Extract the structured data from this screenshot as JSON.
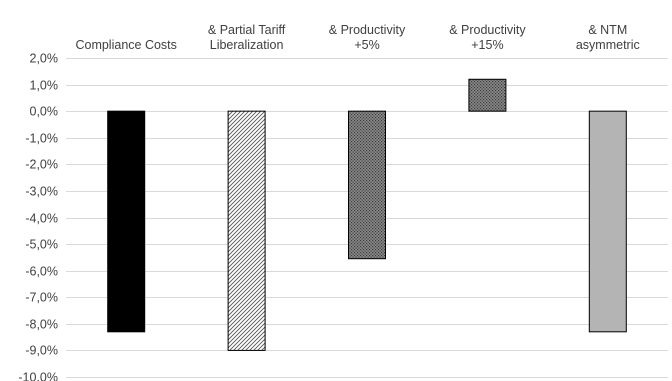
{
  "chart_data": {
    "type": "bar",
    "categories": [
      [
        "Compliance Costs"
      ],
      [
        "& Partial Tariff",
        "Liberalization"
      ],
      [
        "& Productivity",
        "+5%"
      ],
      [
        "& Productivity",
        "+15%"
      ],
      [
        "& NTM",
        "asymmetric"
      ]
    ],
    "values": [
      -8.3,
      -9.0,
      -5.55,
      1.2,
      -8.3
    ],
    "value_unit": "%",
    "ylim": [
      -10.0,
      2.0
    ],
    "y_ticks": [
      2.0,
      1.0,
      0.0,
      -1.0,
      -2.0,
      -3.0,
      -4.0,
      -5.0,
      -6.0,
      -7.0,
      -8.0,
      -9.0,
      -10.0
    ],
    "y_tick_labels": [
      "2,0%",
      "1,0%",
      "0,0%",
      "-1,0%",
      "-2,0%",
      "-3,0%",
      "-4,0%",
      "-5,0%",
      "-6,0%",
      "-7,0%",
      "-8,0%",
      "-9,0%",
      "-10,0%"
    ],
    "category_labels_position": "top",
    "grid": true,
    "bar_styles": [
      "solid-black",
      "diagonal-hatch",
      "dark-dots",
      "dark-dots",
      "solid-gray"
    ],
    "colors": {
      "solid_black": "#000000",
      "hatch_line": "#555555",
      "dots_bg": "#8a8a8a",
      "dots_fg": "#3a3a3a",
      "solid_gray": "#b4b4b4",
      "grid": "#d9d9d9",
      "text": "#404040"
    }
  }
}
